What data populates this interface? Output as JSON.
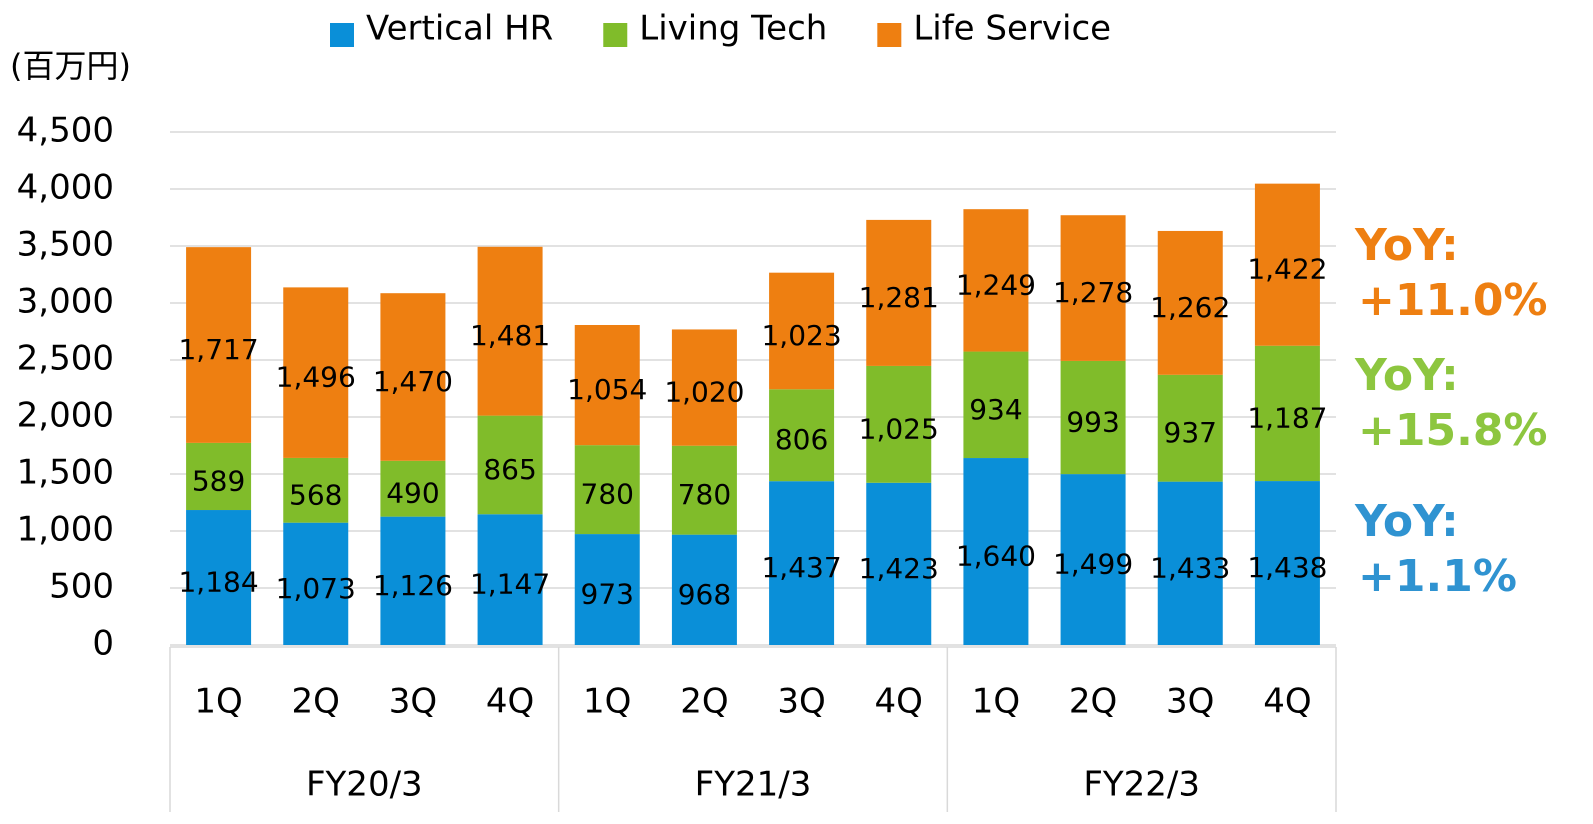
{
  "chart_data": {
    "type": "stacked_bar",
    "y_axis_label": "(百万円)",
    "categories": [
      "1Q",
      "2Q",
      "3Q",
      "4Q",
      "1Q",
      "2Q",
      "3Q",
      "4Q",
      "1Q",
      "2Q",
      "3Q",
      "4Q"
    ],
    "category_groups": [
      "FY20/3",
      "FY21/3",
      "FY22/3"
    ],
    "series": [
      {
        "name": "Vertical HR",
        "color": "#0a8fd8",
        "values": [
          1184,
          1073,
          1126,
          1147,
          973,
          968,
          1437,
          1423,
          1640,
          1499,
          1433,
          1438
        ],
        "value_labels": [
          "1,184",
          "1,073",
          "1,126",
          "1,147",
          "973",
          "968",
          "1,437",
          "1,423",
          "1,640",
          "1,499",
          "1,433",
          "1,438"
        ]
      },
      {
        "name": "Living Tech",
        "color": "#80bc2a",
        "values": [
          589,
          568,
          490,
          865,
          780,
          780,
          806,
          1025,
          934,
          993,
          937,
          1187
        ],
        "value_labels": [
          "589",
          "568",
          "490",
          "865",
          "780",
          "780",
          "806",
          "1,025",
          "934",
          "993",
          "937",
          "1,187"
        ]
      },
      {
        "name": "Life Service",
        "color": "#ee7f11",
        "values": [
          1717,
          1496,
          1470,
          1481,
          1054,
          1020,
          1023,
          1281,
          1249,
          1278,
          1262,
          1422
        ],
        "value_labels": [
          "1,717",
          "1,496",
          "1,470",
          "1,481",
          "1,054",
          "1,020",
          "1,023",
          "1,281",
          "1,249",
          "1,278",
          "1,262",
          "1,422"
        ]
      }
    ],
    "ylim": [
      0,
      4500
    ],
    "yticks": [
      0,
      500,
      {
        "value": 1000,
        "label": "1,000"
      },
      {
        "value": 1500,
        "label": "1,500"
      },
      {
        "value": 2000,
        "label": "2,000"
      },
      {
        "value": 2500,
        "label": "2,500"
      },
      {
        "value": 3000,
        "label": "3,000"
      },
      {
        "value": 3500,
        "label": "3,500"
      },
      {
        "value": 4000,
        "label": "4,000"
      },
      {
        "value": 4500,
        "label": "4,500"
      }
    ],
    "grid": true,
    "legend": "top",
    "annotations": [
      {
        "lines": [
          "YoY:",
          "+11.0%"
        ],
        "color": "#ee7f11"
      },
      {
        "lines": [
          "YoY:",
          "+15.8%"
        ],
        "color": "#8dc63f"
      },
      {
        "lines": [
          "YoY:",
          "+1.1%"
        ],
        "color": "#2f93d1"
      }
    ]
  }
}
